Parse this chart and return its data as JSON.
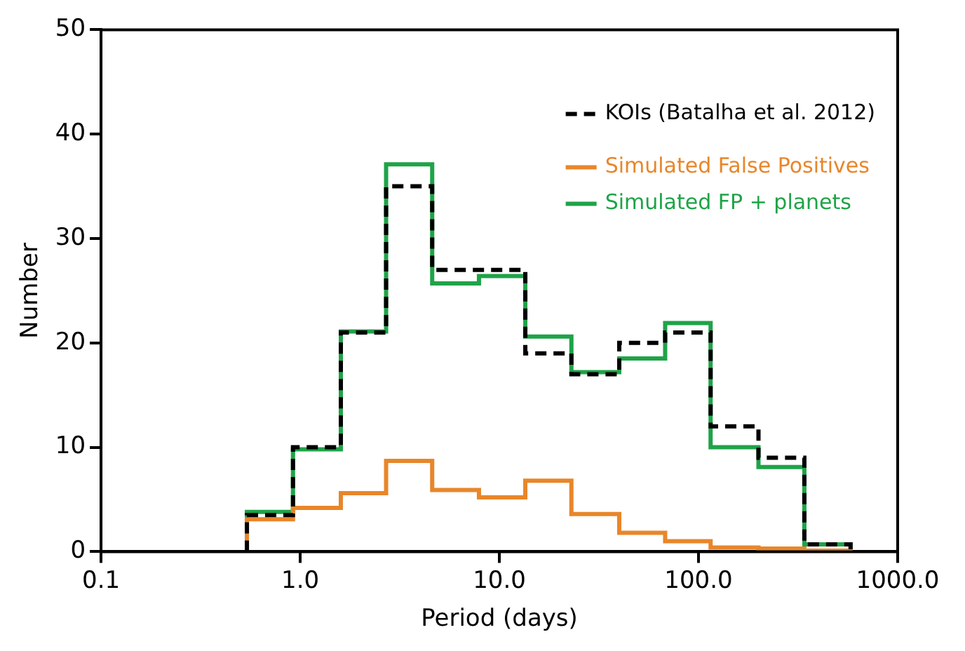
{
  "chart_data": {
    "type": "histogram",
    "xlabel": "Period (days)",
    "ylabel": "Number",
    "bins": [
      0.54,
      0.92,
      1.6,
      2.7,
      4.6,
      7.9,
      13.5,
      23,
      40,
      68,
      115,
      200,
      340,
      580
    ],
    "series": [
      {
        "name": "KOIs (Batalha et al. 2012)",
        "color": "#000000",
        "line_style": "dashed",
        "values": [
          3.5,
          10,
          21,
          35,
          27,
          27,
          19,
          17,
          20,
          21,
          12,
          9,
          0.7
        ]
      },
      {
        "name": "Simulated False Positives",
        "color": "#e8862a",
        "line_style": "solid",
        "values": [
          3.1,
          4.2,
          5.6,
          8.7,
          5.9,
          5.2,
          6.8,
          3.6,
          1.8,
          1,
          0.4,
          0.3,
          0.1
        ]
      },
      {
        "name": "Simulated FP + planets",
        "color": "#1fa348",
        "line_style": "solid",
        "values": [
          3.8,
          9.8,
          21.1,
          37.1,
          25.7,
          26.4,
          20.6,
          17.2,
          18.5,
          21.9,
          10,
          8.1,
          0.7
        ]
      }
    ],
    "log": "x",
    "xlim": [
      0.1,
      1000
    ],
    "ylim": [
      0,
      50
    ],
    "xticks": [
      {
        "value": 0.1,
        "label": "0.1"
      },
      {
        "value": 1,
        "label": "1.0"
      },
      {
        "value": 10,
        "label": "10.0"
      },
      {
        "value": 100,
        "label": "100.0"
      },
      {
        "value": 1000,
        "label": "1000.0"
      }
    ],
    "yticks": [
      0,
      10,
      20,
      30,
      40,
      50
    ],
    "grid": false,
    "legend": "top right"
  }
}
